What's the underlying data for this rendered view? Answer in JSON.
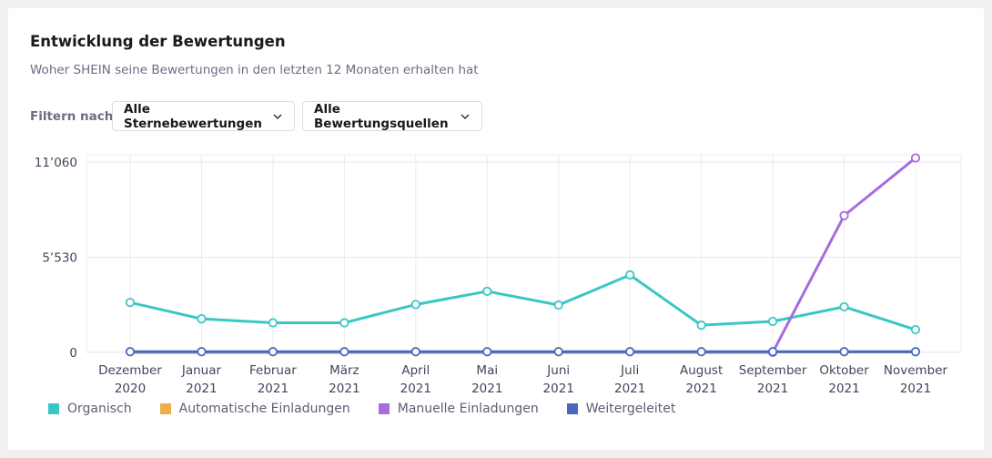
{
  "card": {
    "title": "Entwicklung der Bewertungen",
    "subtitle": "Woher SHEIN seine Bewertungen in den letzten 12 Monaten erhalten hat"
  },
  "filters": {
    "label": "Filtern nach",
    "stars": "Alle Sternebewertungen",
    "sources": "Alle Bewertungsquellen",
    "chevron_icon": "chevron-down-icon"
  },
  "chart_data": {
    "type": "line",
    "x": [
      [
        "Dezember",
        "2020"
      ],
      [
        "Januar",
        "2021"
      ],
      [
        "Februar",
        "2021"
      ],
      [
        "März",
        "2021"
      ],
      [
        "April",
        "2021"
      ],
      [
        "Mai",
        "2021"
      ],
      [
        "Juni",
        "2021"
      ],
      [
        "Juli",
        "2021"
      ],
      [
        "August",
        "2021"
      ],
      [
        "September",
        "2021"
      ],
      [
        "Oktober",
        "2021"
      ],
      [
        "November",
        "2021"
      ]
    ],
    "y_ticks": [
      {
        "value": 0,
        "label": "0"
      },
      {
        "value": 5530,
        "label": "5’530"
      },
      {
        "value": 11060,
        "label": "11’060"
      }
    ],
    "ylim": [
      0,
      11060
    ],
    "grid": true,
    "legend_position": "bottom-left",
    "series": [
      {
        "name": "Organisch",
        "color": "#3ac7c4",
        "values": [
          2900,
          1950,
          1720,
          1720,
          2780,
          3550,
          2750,
          4500,
          1580,
          1800,
          2650,
          1320
        ]
      },
      {
        "name": "Automatische Einladungen",
        "color": "#f0ad4e",
        "values": [
          20,
          20,
          20,
          20,
          20,
          20,
          20,
          20,
          20,
          20,
          20,
          20
        ]
      },
      {
        "name": "Manuelle Einladungen",
        "color": "#a76ce0",
        "values": [
          0,
          0,
          0,
          0,
          0,
          0,
          0,
          0,
          0,
          0,
          7950,
          11300
        ]
      },
      {
        "name": "Weitergeleitet",
        "color": "#4a67c3",
        "values": [
          40,
          40,
          40,
          40,
          40,
          40,
          40,
          40,
          40,
          40,
          40,
          40
        ]
      }
    ]
  }
}
